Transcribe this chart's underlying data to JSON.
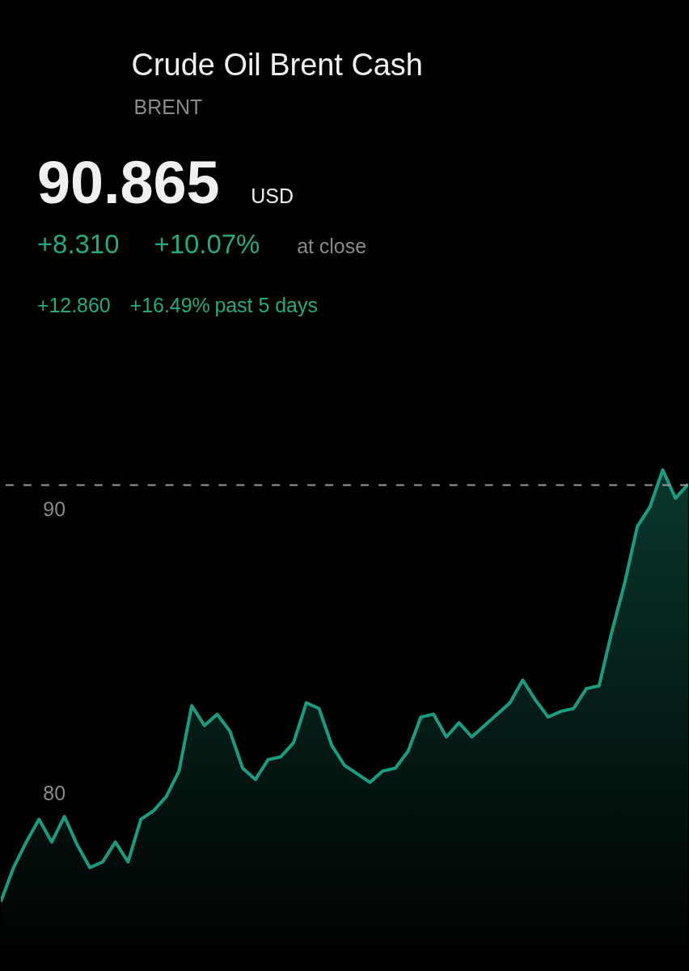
{
  "chart_data": {
    "type": "area",
    "title": "Crude Oil Brent Cash",
    "subtitle": "BRENT",
    "annotations": [
      "90.865",
      "USD",
      "+8.310",
      "+10.07%",
      "at close",
      "+12.860",
      "+16.49%",
      "past 5 days"
    ],
    "categories": [
      null,
      null,
      null,
      null,
      null,
      null,
      null,
      null,
      null,
      null,
      null,
      null,
      null,
      null,
      null,
      null,
      null,
      null,
      null,
      null,
      null,
      null,
      null,
      null,
      null,
      null,
      null,
      null,
      null,
      null,
      null,
      null,
      null,
      null,
      null,
      null,
      null,
      null,
      null,
      null,
      null,
      null,
      null,
      null,
      null,
      null,
      null,
      null,
      null,
      null,
      null,
      null,
      null,
      null,
      null
    ],
    "series": [
      {
        "color": "#1a9c80",
        "values": [
          76.2,
          77.4,
          78.3,
          79.1,
          78.3,
          79.2,
          78.2,
          77.4,
          77.6,
          78.3,
          77.6,
          79.1,
          79.4,
          79.9,
          80.8,
          83.1,
          82.4,
          82.8,
          82.2,
          80.9,
          80.5,
          81.2,
          81.3,
          81.8,
          83.2,
          83.0,
          81.7,
          81.0,
          80.7,
          80.4,
          80.8,
          80.9,
          81.5,
          82.7,
          82.8,
          82.0,
          82.5,
          82.0,
          82.4,
          82.8,
          83.2,
          84.0,
          83.3,
          82.7,
          82.9,
          83.0,
          83.7,
          83.8,
          85.7,
          87.4,
          89.4,
          90.1,
          91.4,
          90.4,
          90.9
        ]
      }
    ],
    "ylim": [
      73.8,
      107.9
    ],
    "yticks": [
      80,
      90
    ],
    "tick_labels": "y",
    "ref_lines": [
      {
        "axis": "y",
        "value": 90.865,
        "color": "#9a9a9a",
        "line_style": "dashed"
      }
    ]
  }
}
